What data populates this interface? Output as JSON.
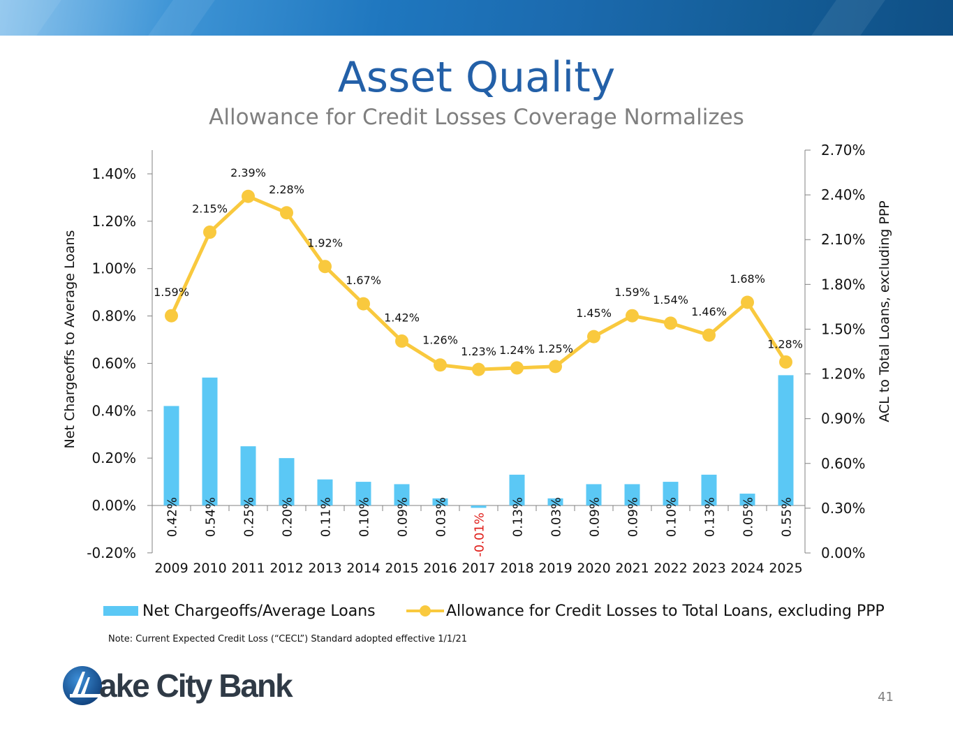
{
  "header": {
    "title": "Asset Quality",
    "subtitle": "Allowance for Credit Losses Coverage Normalizes"
  },
  "chart_data": {
    "type": "bar+line",
    "categories": [
      "2009",
      "2010",
      "2011",
      "2012",
      "2013",
      "2014",
      "2015",
      "2016",
      "2017",
      "2018",
      "2019",
      "2020",
      "2021",
      "2022",
      "2023",
      "2024",
      "2025"
    ],
    "series": [
      {
        "name": "Net Chargeoffs/Average Loans",
        "type": "bar",
        "axis": "left",
        "color": "#5bc8f5",
        "values": [
          0.42,
          0.54,
          0.25,
          0.2,
          0.11,
          0.1,
          0.09,
          0.03,
          -0.01,
          0.13,
          0.03,
          0.09,
          0.09,
          0.1,
          0.13,
          0.05,
          0.55
        ],
        "labels": [
          "0.42%",
          "0.54%",
          "0.25%",
          "0.20%",
          "0.11%",
          "0.10%",
          "0.09%",
          "0.03%",
          "-0.01%",
          "0.13%",
          "0.03%",
          "0.09%",
          "0.09%",
          "0.10%",
          "0.13%",
          "0.05%",
          "0.55%"
        ]
      },
      {
        "name": "Allowance for Credit Losses to Total Loans, excluding PPP",
        "type": "line",
        "axis": "right",
        "color": "#f9c93e",
        "values": [
          1.59,
          2.15,
          2.39,
          2.28,
          1.92,
          1.67,
          1.42,
          1.26,
          1.23,
          1.24,
          1.25,
          1.45,
          1.59,
          1.54,
          1.46,
          1.68,
          1.28
        ],
        "labels": [
          "1.59%",
          "2.15%",
          "2.39%",
          "2.28%",
          "1.92%",
          "1.67%",
          "1.42%",
          "1.26%",
          "1.23%",
          "1.24%",
          "1.25%",
          "1.45%",
          "1.59%",
          "1.54%",
          "1.46%",
          "1.68%",
          "1.28%"
        ]
      }
    ],
    "left_axis": {
      "label": "Net Chargeoffs to Average Loans",
      "min": -0.2,
      "max": 1.5,
      "ticks": [
        -0.2,
        0,
        0.2,
        0.4,
        0.6,
        0.8,
        1.0,
        1.2,
        1.4
      ],
      "tick_labels": [
        "-0.20%",
        "0.00%",
        "0.20%",
        "0.40%",
        "0.60%",
        "0.80%",
        "1.00%",
        "1.20%",
        "1.40%"
      ]
    },
    "right_axis": {
      "label": "ACL to Total Loans, excluding PPP",
      "min": 0,
      "max": 2.7,
      "ticks": [
        0,
        0.3,
        0.6,
        0.9,
        1.2,
        1.5,
        1.8,
        2.1,
        2.4,
        2.7
      ],
      "tick_labels": [
        "0.00%",
        "0.30%",
        "0.60%",
        "0.90%",
        "1.20%",
        "1.50%",
        "1.80%",
        "2.10%",
        "2.40%",
        "2.70%"
      ]
    },
    "negative_label_color": "#e0201c",
    "grid": false,
    "legend": "bottom"
  },
  "legend": {
    "bar_label": "Net Chargeoffs/Average Loans",
    "line_label": "Allowance for Credit Losses to Total Loans, excluding PPP"
  },
  "note": "Note: Current Expected Credit Loss (“CECL”) Standard adopted effective 1/1/21",
  "logo": {
    "text": "ake City Bank",
    "icon": "lake-city-bank-logo-icon"
  },
  "page_number": "41"
}
